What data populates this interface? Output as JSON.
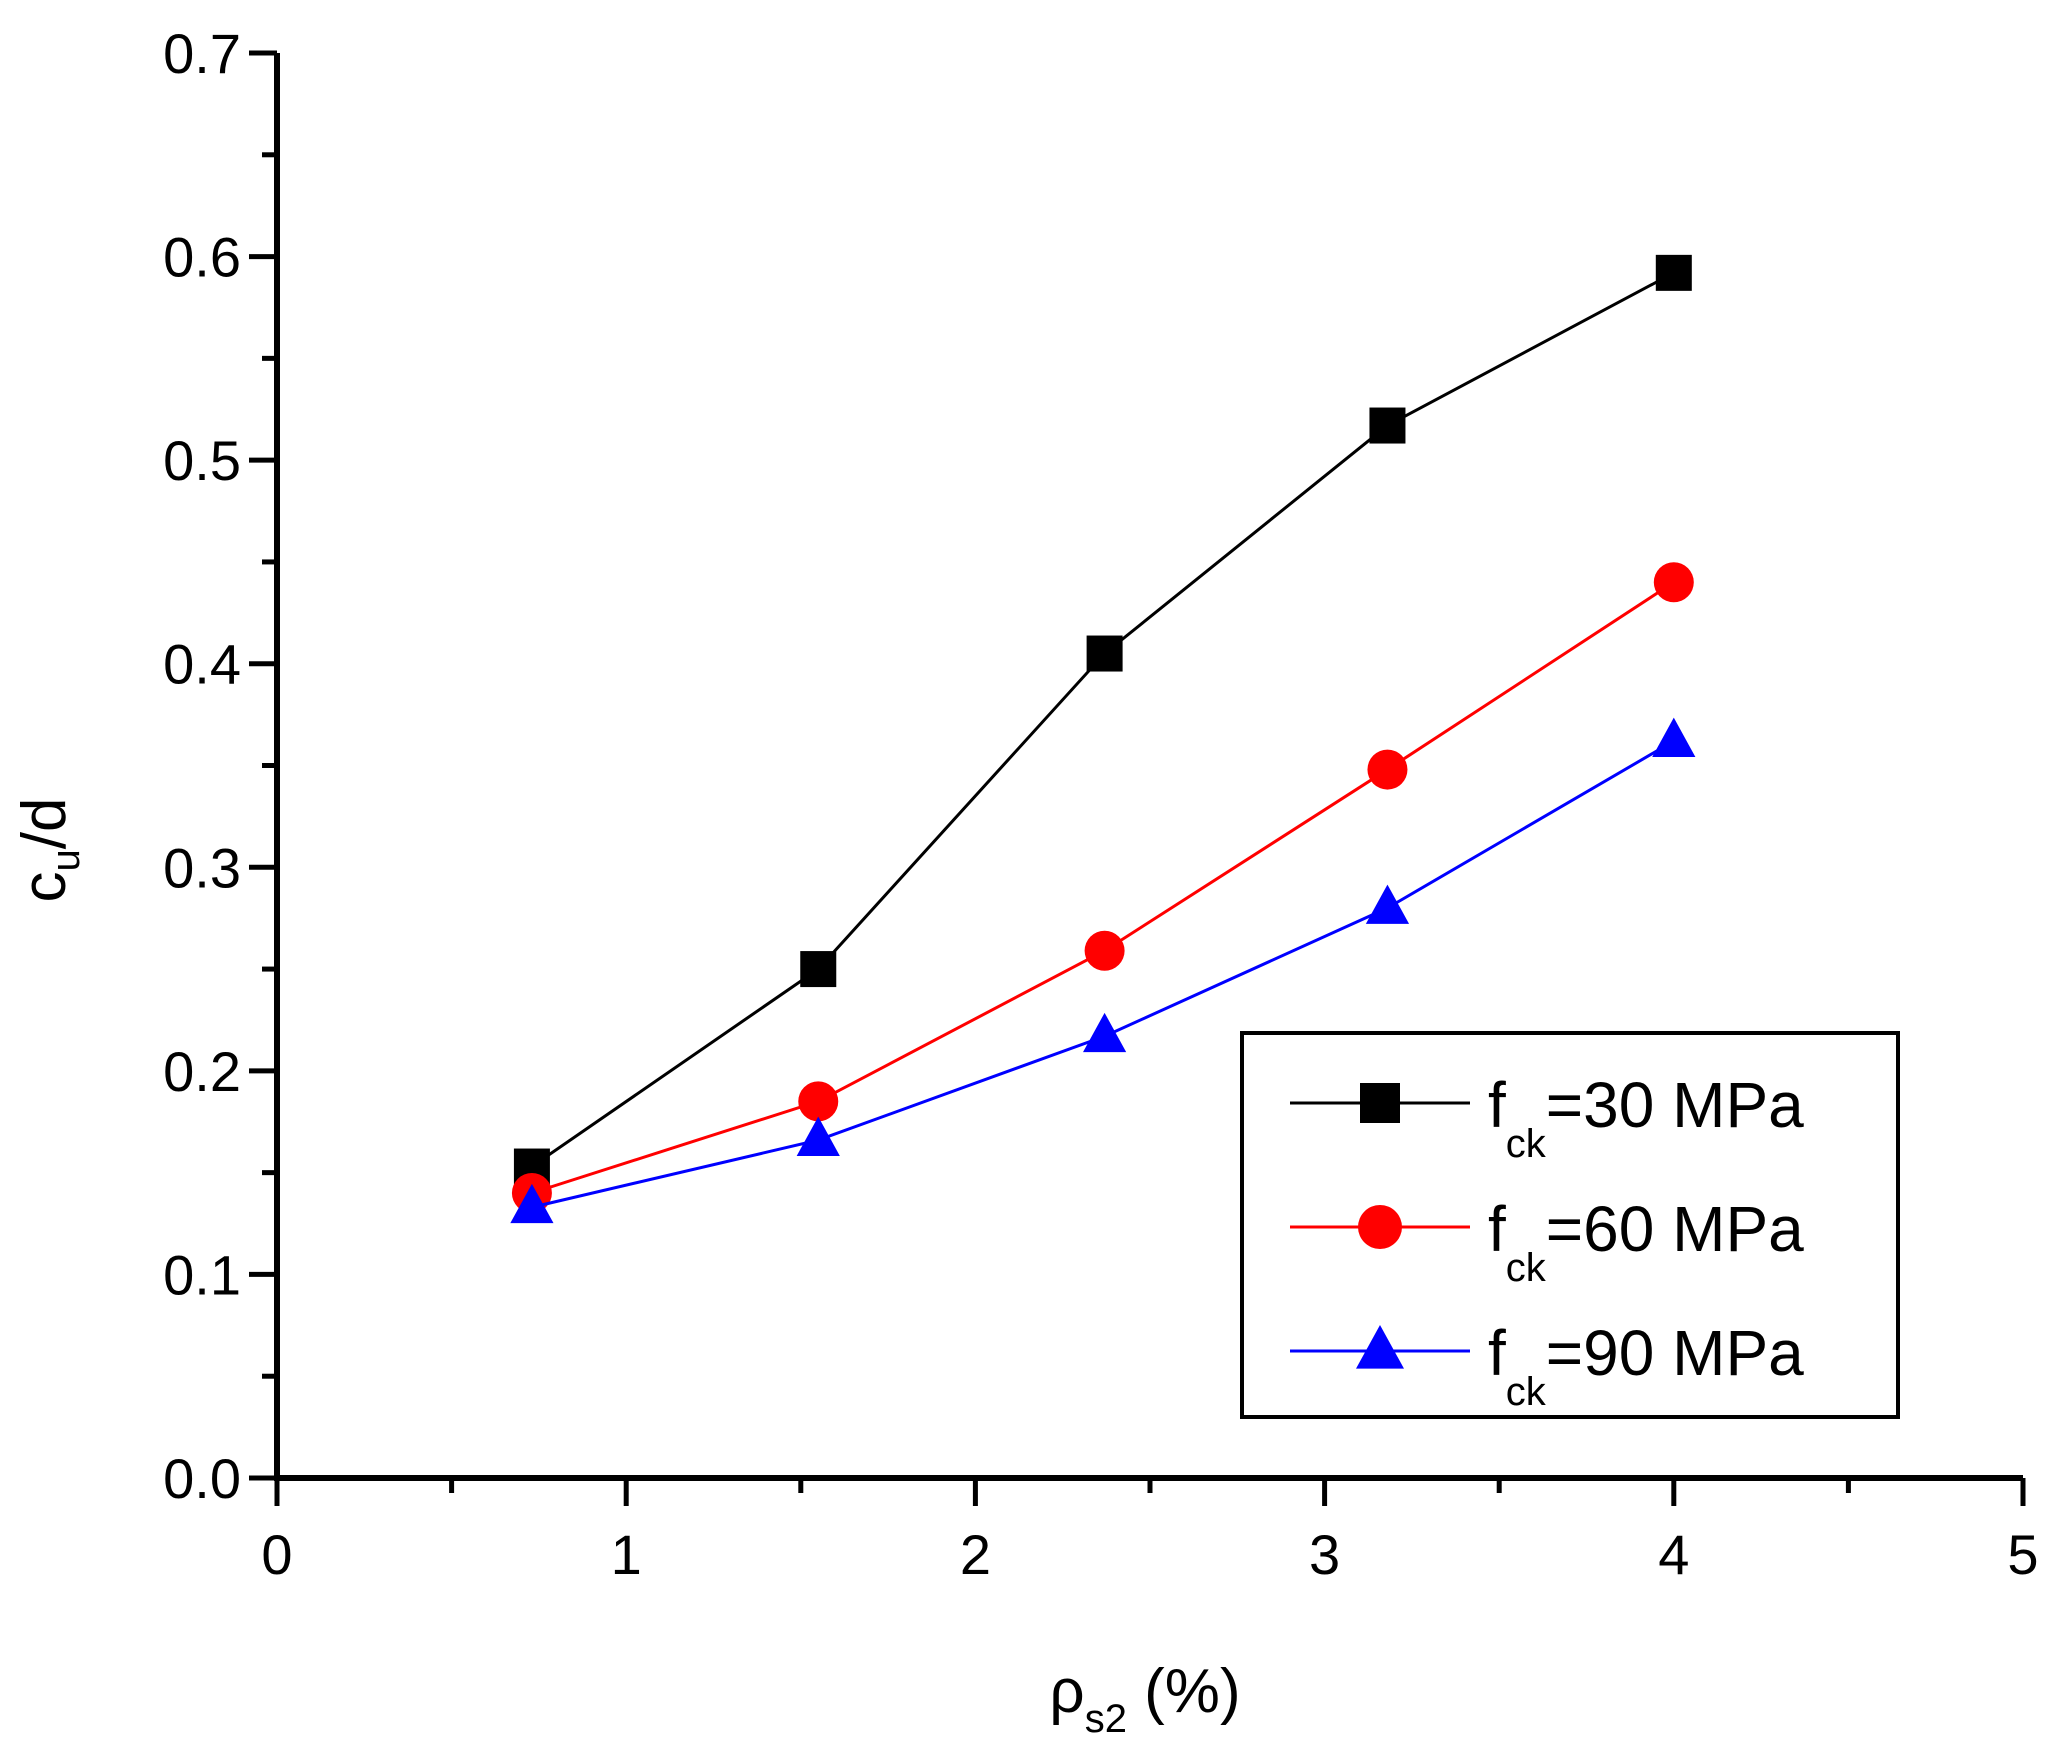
{
  "chart_data": {
    "type": "line",
    "title": "",
    "xlabel": {
      "main": "ρ",
      "sub": "s2",
      "suffix": " (%)"
    },
    "ylabel": {
      "main": "c",
      "sub": "u",
      "suffix": "/d"
    },
    "xlim": [
      0,
      5
    ],
    "ylim": [
      0.0,
      0.7
    ],
    "x_ticks": [
      "0",
      "1",
      "2",
      "3",
      "4",
      "5"
    ],
    "x_tick_values": [
      0,
      1,
      2,
      3,
      4,
      5
    ],
    "y_ticks": [
      "0.0",
      "0.1",
      "0.2",
      "0.3",
      "0.4",
      "0.5",
      "0.6",
      "0.7"
    ],
    "y_tick_values": [
      0.0,
      0.1,
      0.2,
      0.3,
      0.4,
      0.5,
      0.6,
      0.7
    ],
    "grid": false,
    "legend_position": "bottom-right",
    "x": [
      0.73,
      1.55,
      2.37,
      3.18,
      4.0
    ],
    "series": [
      {
        "name": "fck=30 MPa",
        "label_main": "f",
        "label_sub": "ck",
        "label_rest": "=30 MPa",
        "color": "#000000",
        "marker": "square",
        "values": [
          0.153,
          0.25,
          0.405,
          0.517,
          0.592
        ]
      },
      {
        "name": "fck=60 MPa",
        "label_main": "f",
        "label_sub": "ck",
        "label_rest": "=60 MPa",
        "color": "#ff0000",
        "marker": "circle",
        "values": [
          0.14,
          0.185,
          0.259,
          0.348,
          0.44
        ]
      },
      {
        "name": "fck=90 MPa",
        "label_main": "f",
        "label_sub": "ck",
        "label_rest": "=90 MPa",
        "color": "#0000ff",
        "marker": "triangle",
        "values": [
          0.133,
          0.166,
          0.217,
          0.28,
          0.362
        ]
      }
    ]
  }
}
